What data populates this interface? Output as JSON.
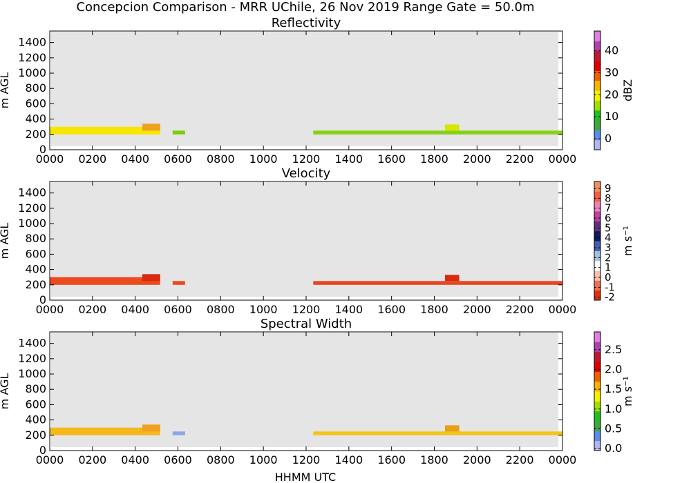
{
  "suptitle": "Concepcion Comparison - MRR UChile, 26 Nov 2019 Range Gate = 50.0m",
  "shared_xlabel": "HHMM UTC",
  "chart_data": [
    {
      "type": "heatmap",
      "title": "Reflectivity",
      "ylabel": "m AGL",
      "xlabel": "",
      "x_ticks": [
        "0000",
        "0200",
        "0400",
        "0600",
        "0800",
        "1000",
        "1200",
        "1400",
        "1600",
        "1800",
        "2000",
        "2200",
        "0000"
      ],
      "xlim_hours": [
        0,
        24
      ],
      "ylim": [
        0,
        1550
      ],
      "y_ticks": [
        0,
        200,
        400,
        600,
        800,
        1000,
        1200,
        1400
      ],
      "colorbar": {
        "label": "dBZ",
        "range": [
          -5,
          49
        ],
        "ticks": [
          "0",
          "10",
          "20",
          "30",
          "40"
        ],
        "tick_values": [
          0,
          10,
          20,
          30,
          40
        ]
      },
      "echo_periods": [
        {
          "start": "0000",
          "end": "0510",
          "base_m": 200,
          "top_m": 300,
          "color": "#f7e600"
        },
        {
          "start": "0420",
          "end": "0510",
          "base_m": 250,
          "top_m": 340,
          "color": "#f0a020"
        },
        {
          "start": "0545",
          "end": "0620",
          "base_m": 200,
          "top_m": 250,
          "color": "#7acc10"
        },
        {
          "start": "1220",
          "end": "2400",
          "base_m": 200,
          "top_m": 250,
          "color": "#88d018"
        },
        {
          "start": "1830",
          "end": "1910",
          "base_m": 250,
          "top_m": 330,
          "color": "#d6e600"
        }
      ]
    },
    {
      "type": "heatmap",
      "title": "Velocity",
      "ylabel": "m AGL",
      "xlabel": "",
      "x_ticks": [
        "0000",
        "0200",
        "0400",
        "0600",
        "0800",
        "1000",
        "1200",
        "1400",
        "1600",
        "1800",
        "2000",
        "2200",
        "0000"
      ],
      "xlim_hours": [
        0,
        24
      ],
      "ylim": [
        0,
        1550
      ],
      "y_ticks": [
        0,
        200,
        400,
        600,
        800,
        1000,
        1200,
        1400
      ],
      "colorbar": {
        "label": "m s⁻¹",
        "range": [
          -2.3,
          9.7
        ],
        "ticks": [
          "-2",
          "-1",
          "0",
          "1",
          "2",
          "3",
          "4",
          "5",
          "6",
          "7",
          "8",
          "9"
        ],
        "tick_values": [
          -2,
          -1,
          0,
          1,
          2,
          3,
          4,
          5,
          6,
          7,
          8,
          9
        ]
      },
      "echo_periods": [
        {
          "start": "0000",
          "end": "0510",
          "base_m": 200,
          "top_m": 300,
          "color": "#ec4a1c"
        },
        {
          "start": "0420",
          "end": "0510",
          "base_m": 250,
          "top_m": 340,
          "color": "#d82a10"
        },
        {
          "start": "0545",
          "end": "0620",
          "base_m": 200,
          "top_m": 250,
          "color": "#ec4a1c"
        },
        {
          "start": "1220",
          "end": "2400",
          "base_m": 200,
          "top_m": 250,
          "color": "#e8461e"
        },
        {
          "start": "1830",
          "end": "1910",
          "base_m": 250,
          "top_m": 330,
          "color": "#d82a10"
        }
      ]
    },
    {
      "type": "heatmap",
      "title": "Spectral Width",
      "ylabel": "m AGL",
      "xlabel": "HHMM UTC",
      "x_ticks": [
        "0000",
        "0200",
        "0400",
        "0600",
        "0800",
        "1000",
        "1200",
        "1400",
        "1600",
        "1800",
        "2000",
        "2200",
        "0000"
      ],
      "xlim_hours": [
        0,
        24
      ],
      "ylim": [
        0,
        1550
      ],
      "y_ticks": [
        0,
        200,
        400,
        600,
        800,
        1000,
        1200,
        1400
      ],
      "colorbar": {
        "label": "m s⁻¹",
        "range": [
          -0.05,
          2.95
        ],
        "ticks": [
          "0.0",
          "0.5",
          "1.0",
          "1.5",
          "2.0",
          "2.5"
        ],
        "tick_values": [
          0,
          0.5,
          1.0,
          1.5,
          2.0,
          2.5
        ]
      },
      "echo_periods": [
        {
          "start": "0000",
          "end": "0510",
          "base_m": 200,
          "top_m": 300,
          "color": "#f4b81c"
        },
        {
          "start": "0420",
          "end": "0510",
          "base_m": 250,
          "top_m": 340,
          "color": "#f0a020"
        },
        {
          "start": "0545",
          "end": "0620",
          "base_m": 200,
          "top_m": 250,
          "color": "#8aa8e8"
        },
        {
          "start": "1220",
          "end": "2400",
          "base_m": 200,
          "top_m": 250,
          "color": "#f4c418"
        },
        {
          "start": "1830",
          "end": "1910",
          "base_m": 250,
          "top_m": 330,
          "color": "#e8a010"
        }
      ]
    }
  ],
  "colors": {
    "plot_background": "#e5e5e5",
    "reflectivity_cmap": [
      "#b0b8f0",
      "#5c8ce8",
      "#40a840",
      "#20c020",
      "#a0e000",
      "#f4f000",
      "#f4b400",
      "#f06000",
      "#e00000",
      "#c01830",
      "#b040b0",
      "#e080e0"
    ],
    "velocity_cmap": [
      "#e03010",
      "#f07050",
      "#f8c0b0",
      "#ffffff",
      "#a8c0e0",
      "#4060b0",
      "#101860",
      "#603080",
      "#c040a0",
      "#f080c0",
      "#f06040",
      "#f09060"
    ],
    "spectral_width_cmap": [
      "#b0b8f0",
      "#5c8ce8",
      "#40a840",
      "#20c020",
      "#a0e000",
      "#f4f000",
      "#f4b400",
      "#f06000",
      "#e00000",
      "#c01830",
      "#b040b0",
      "#e080e0"
    ]
  }
}
